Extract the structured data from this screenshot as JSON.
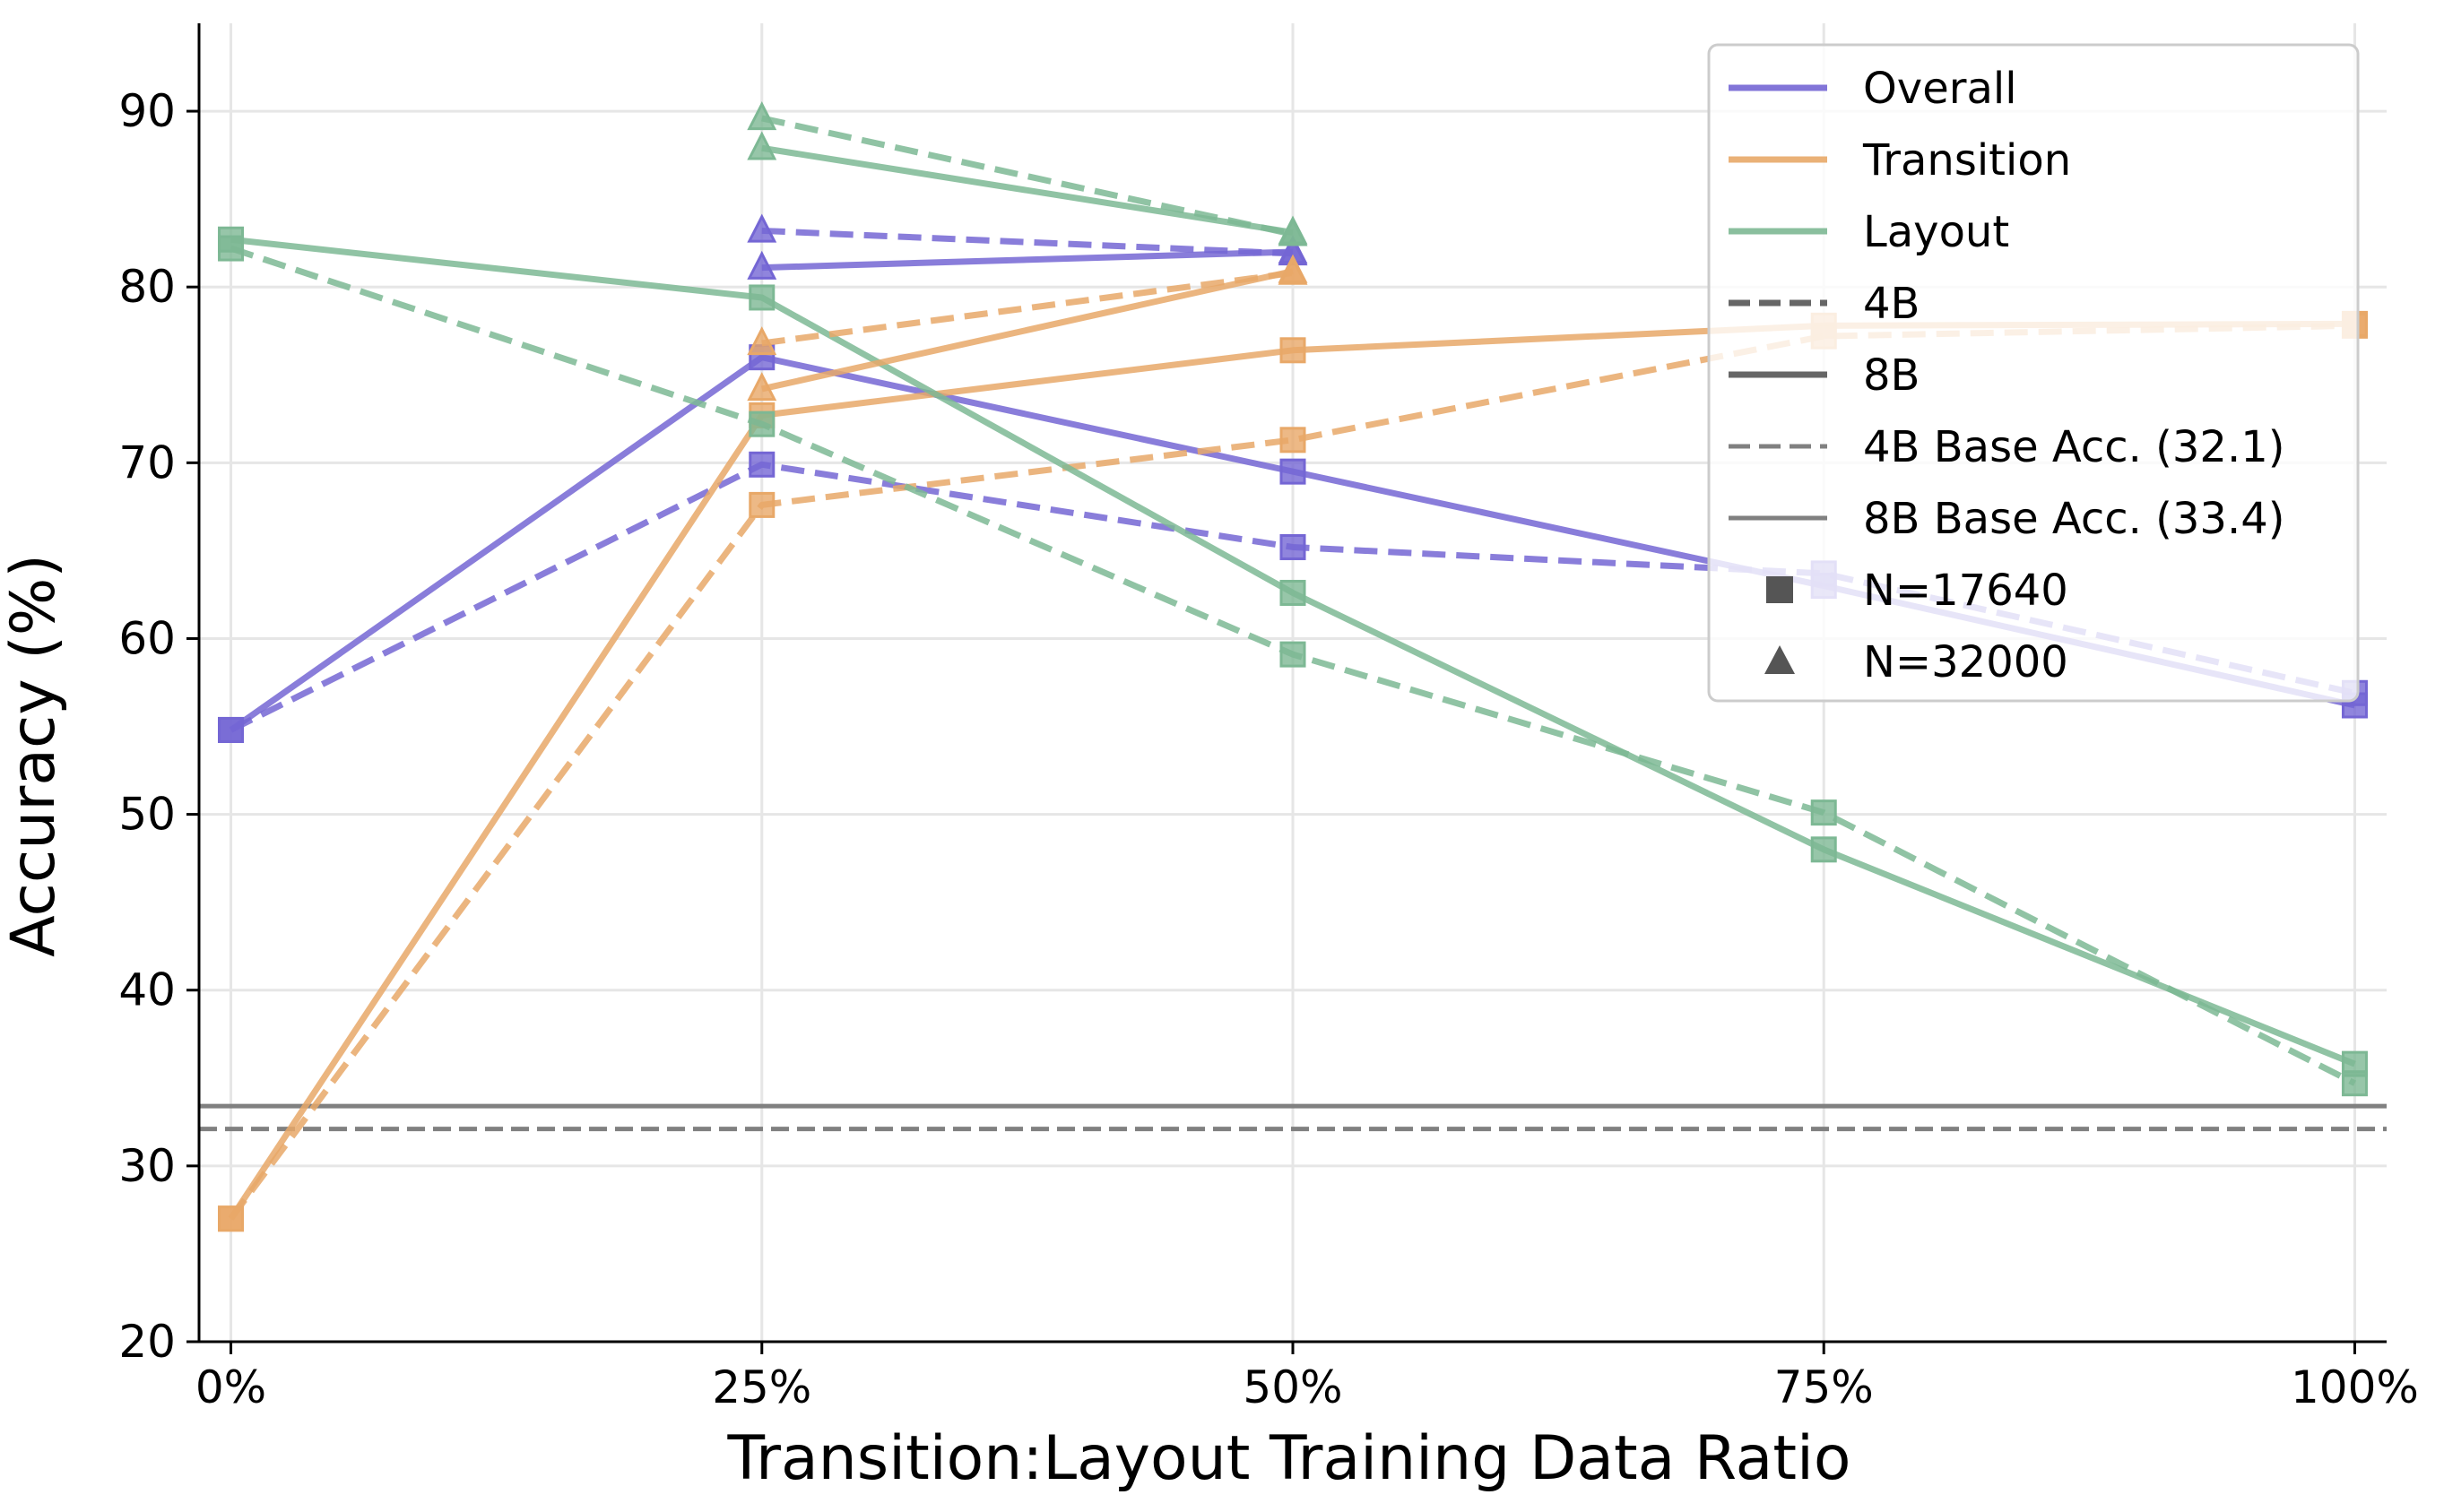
{
  "chart_data": {
    "type": "line",
    "title": "",
    "xlabel": "Transition:Layout Training Data Ratio",
    "ylabel": "Accuracy (%)",
    "x_categories": [
      "0%",
      "25%",
      "50%",
      "75%",
      "100%"
    ],
    "y_ticks": [
      "20",
      "30",
      "40",
      "50",
      "60",
      "70",
      "80",
      "90"
    ],
    "ylim": [
      20,
      95
    ],
    "xlim": [
      -0.06,
      4.06
    ],
    "grid": true,
    "legend_position": "top-right",
    "colors": {
      "Overall": "#7466d4",
      "Transition": "#e8a868",
      "Layout": "#7db894",
      "base": "#808080"
    },
    "legend": [
      {
        "label": "Overall",
        "kind": "line",
        "color": "#7466d4",
        "dash": "solid"
      },
      {
        "label": "Transition",
        "kind": "line",
        "color": "#e8a868",
        "dash": "solid"
      },
      {
        "label": "Layout",
        "kind": "line",
        "color": "#7db894",
        "dash": "solid"
      },
      {
        "label": "4B",
        "kind": "line",
        "color": "#555555",
        "dash": "dashed"
      },
      {
        "label": "8B",
        "kind": "line",
        "color": "#555555",
        "dash": "solid"
      },
      {
        "label": "4B Base Acc. (32.1)",
        "kind": "line",
        "color": "#808080",
        "dash": "dashed",
        "thin": true
      },
      {
        "label": "8B Base Acc. (33.4)",
        "kind": "line",
        "color": "#808080",
        "dash": "solid",
        "thin": true
      },
      {
        "label": "N=17640",
        "kind": "marker",
        "marker": "square",
        "color": "#555555"
      },
      {
        "label": "N=32000",
        "kind": "marker",
        "marker": "triangle",
        "color": "#555555"
      }
    ],
    "baselines": [
      {
        "name": "4B Base Acc. (32.1)",
        "value": 32.1,
        "dash": "dashed"
      },
      {
        "name": "8B Base Acc. (33.4)",
        "value": 33.4,
        "dash": "solid"
      }
    ],
    "series": [
      {
        "metric": "Overall",
        "model": "8B",
        "N": "N=17640",
        "marker": "square",
        "dash": "solid",
        "x": [
          0,
          1,
          2,
          3,
          4
        ],
        "values": [
          54.8,
          76.0,
          69.5,
          63.0,
          56.2
        ]
      },
      {
        "metric": "Overall",
        "model": "4B",
        "N": "N=17640",
        "marker": "square",
        "dash": "dashed",
        "x": [
          0,
          1,
          2,
          3,
          4
        ],
        "values": [
          54.8,
          69.9,
          65.2,
          63.7,
          56.9
        ]
      },
      {
        "metric": "Transition",
        "model": "8B",
        "N": "N=17640",
        "marker": "square",
        "dash": "solid",
        "x": [
          0,
          1,
          2,
          3,
          4
        ],
        "values": [
          27.0,
          72.7,
          76.4,
          77.8,
          77.9
        ]
      },
      {
        "metric": "Transition",
        "model": "4B",
        "N": "N=17640",
        "marker": "square",
        "dash": "dashed",
        "x": [
          0,
          1,
          2,
          3,
          4
        ],
        "values": [
          27.0,
          67.6,
          71.3,
          77.2,
          77.8
        ]
      },
      {
        "metric": "Layout",
        "model": "8B",
        "N": "N=17640",
        "marker": "square",
        "dash": "solid",
        "x": [
          0,
          1,
          2,
          3,
          4
        ],
        "values": [
          82.7,
          79.4,
          62.6,
          48.0,
          35.8
        ]
      },
      {
        "metric": "Layout",
        "model": "4B",
        "N": "N=17640",
        "marker": "square",
        "dash": "dashed",
        "x": [
          0,
          1,
          2,
          3,
          4
        ],
        "values": [
          82.2,
          72.2,
          59.1,
          50.1,
          34.7
        ]
      },
      {
        "metric": "Overall",
        "model": "8B",
        "N": "N=32000",
        "marker": "triangle",
        "dash": "solid",
        "x": [
          1,
          2
        ],
        "values": [
          81.1,
          82.0
        ]
      },
      {
        "metric": "Overall",
        "model": "4B",
        "N": "N=32000",
        "marker": "triangle",
        "dash": "dashed",
        "x": [
          1,
          2
        ],
        "values": [
          83.2,
          81.9
        ]
      },
      {
        "metric": "Transition",
        "model": "8B",
        "N": "N=32000",
        "marker": "triangle",
        "dash": "solid",
        "x": [
          1,
          2
        ],
        "values": [
          74.2,
          80.9
        ]
      },
      {
        "metric": "Transition",
        "model": "4B",
        "N": "N=32000",
        "marker": "triangle",
        "dash": "dashed",
        "x": [
          1,
          2
        ],
        "values": [
          76.8,
          80.8
        ]
      },
      {
        "metric": "Layout",
        "model": "8B",
        "N": "N=32000",
        "marker": "triangle",
        "dash": "solid",
        "x": [
          1,
          2
        ],
        "values": [
          87.9,
          83.1
        ]
      },
      {
        "metric": "Layout",
        "model": "4B",
        "N": "N=32000",
        "marker": "triangle",
        "dash": "dashed",
        "x": [
          1,
          2
        ],
        "values": [
          89.6,
          83.0
        ]
      }
    ]
  }
}
